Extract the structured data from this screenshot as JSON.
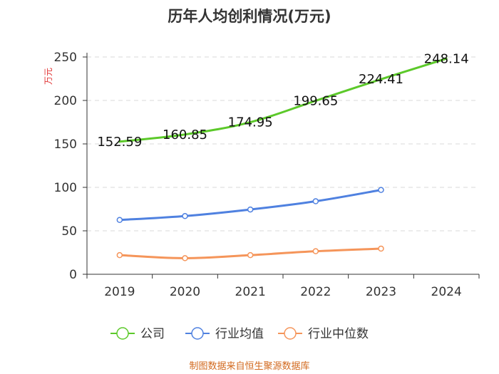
{
  "chart_data": {
    "type": "line",
    "title": "历年人均创利情况(万元)",
    "ylabel": "万元",
    "xlabel": "",
    "categories": [
      "2019",
      "2020",
      "2021",
      "2022",
      "2023",
      "2024"
    ],
    "ylim": [
      0,
      250
    ],
    "yticks": [
      0,
      50,
      100,
      150,
      200,
      250
    ],
    "grid": true,
    "legend_position": "bottom-center",
    "series": [
      {
        "name": "公司",
        "color": "#5cc92a",
        "markers": false,
        "data_labels": true,
        "values": [
          152.59,
          160.85,
          174.95,
          199.65,
          224.41,
          248.14
        ]
      },
      {
        "name": "行业均值",
        "color": "#4f81e0",
        "markers": true,
        "data_labels": false,
        "values": [
          62.5,
          67.0,
          74.5,
          84.0,
          97.0,
          null
        ]
      },
      {
        "name": "行业中位数",
        "color": "#f5955a",
        "markers": true,
        "data_labels": false,
        "values": [
          22.0,
          18.5,
          22.0,
          26.5,
          29.5,
          null
        ]
      }
    ],
    "data_labels": [
      "152.59",
      "160.85",
      "174.95",
      "199.65",
      "224.41",
      "248.14"
    ]
  },
  "footer": {
    "source": "制图数据来自恒生聚源数据库"
  }
}
